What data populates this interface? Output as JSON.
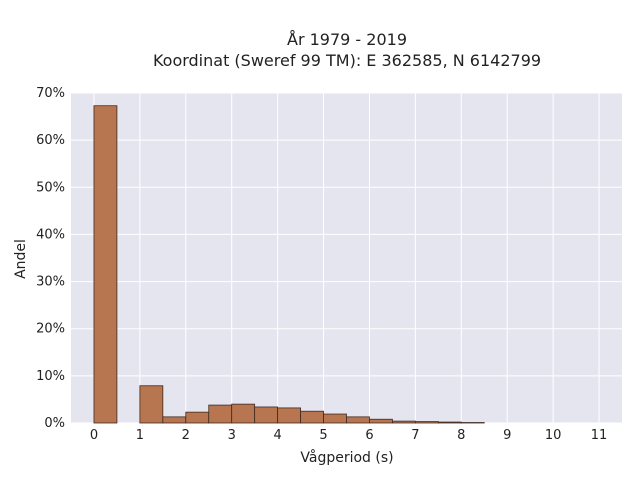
{
  "chart_data": {
    "type": "bar",
    "title": [
      "År 1979 - 2019",
      "Koordinat (Sweref 99 TM): E 362585, N 6142799"
    ],
    "xlabel": "Vågperiod (s)",
    "ylabel": "Andel",
    "x_ticks": [
      "0",
      "1",
      "2",
      "3",
      "4",
      "5",
      "6",
      "7",
      "8",
      "9",
      "10",
      "11"
    ],
    "y_ticks": [
      "0%",
      "10%",
      "20%",
      "30%",
      "40%",
      "50%",
      "60%",
      "70%"
    ],
    "xlim": [
      -0.5,
      11.5
    ],
    "ylim": [
      0,
      70
    ],
    "bin_width": 0.5,
    "bins": [
      {
        "x0": 0.0,
        "value": 67.3
      },
      {
        "x0": 1.0,
        "value": 7.9
      },
      {
        "x0": 1.5,
        "value": 1.3
      },
      {
        "x0": 2.0,
        "value": 2.3
      },
      {
        "x0": 2.5,
        "value": 3.8
      },
      {
        "x0": 3.0,
        "value": 4.0
      },
      {
        "x0": 3.5,
        "value": 3.4
      },
      {
        "x0": 4.0,
        "value": 3.2
      },
      {
        "x0": 4.5,
        "value": 2.5
      },
      {
        "x0": 5.0,
        "value": 1.9
      },
      {
        "x0": 5.5,
        "value": 1.3
      },
      {
        "x0": 6.0,
        "value": 0.8
      },
      {
        "x0": 6.5,
        "value": 0.4
      },
      {
        "x0": 7.0,
        "value": 0.3
      },
      {
        "x0": 7.5,
        "value": 0.2
      },
      {
        "x0": 8.0,
        "value": 0.1
      }
    ],
    "grid": true,
    "colors": {
      "bar_fill": "#b87650",
      "bar_stroke": "#3d2a20",
      "plot_background": "#e5e5f0",
      "grid": "#ffffff"
    }
  }
}
